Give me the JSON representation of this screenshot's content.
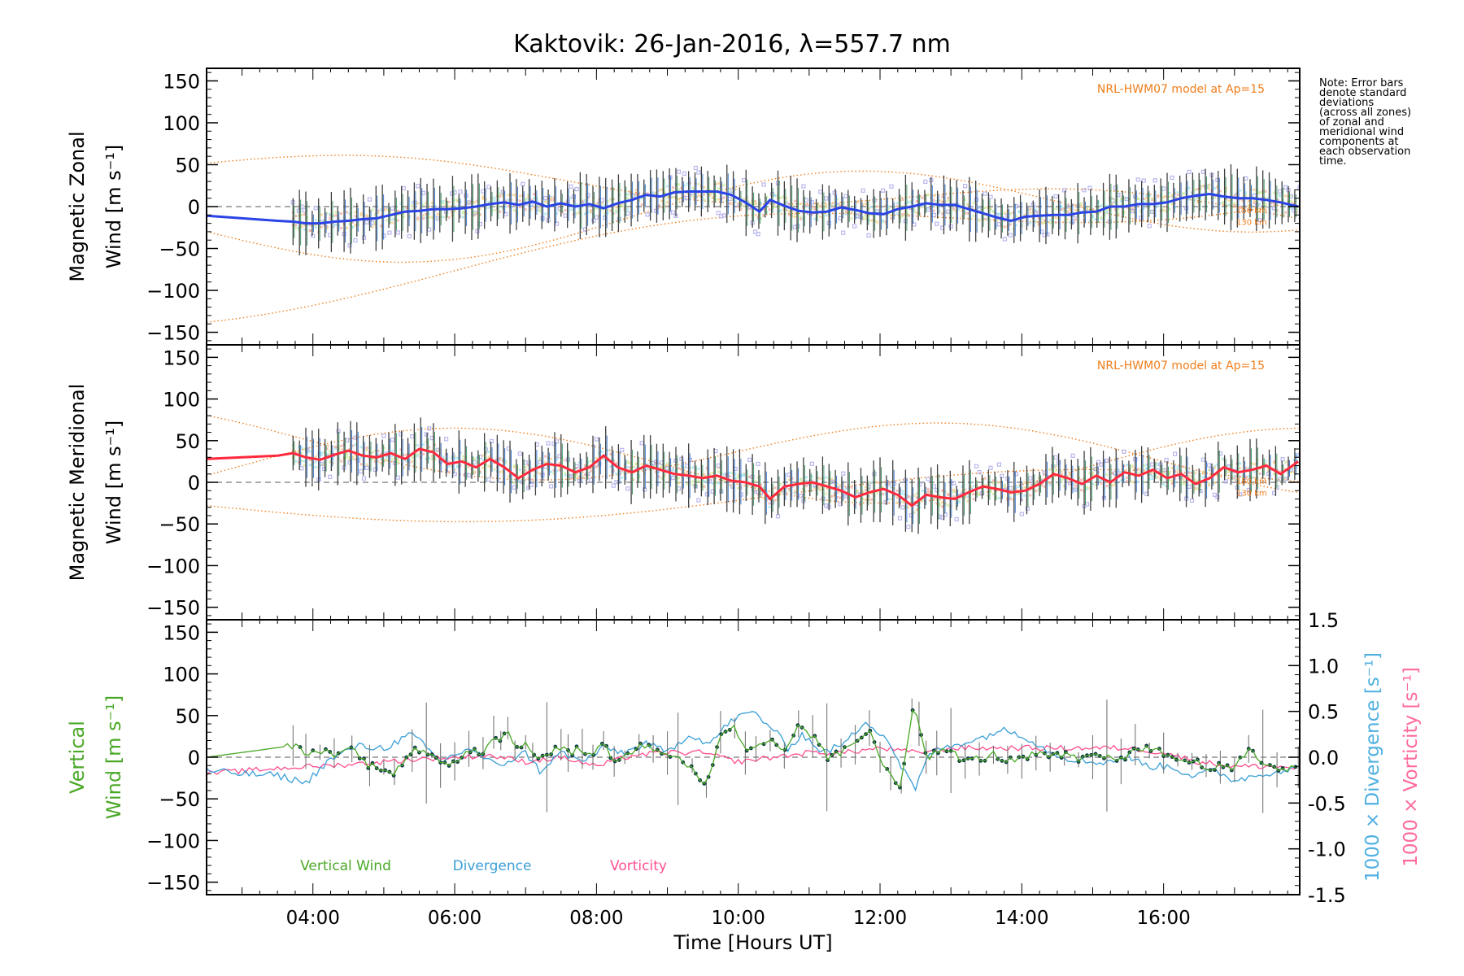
{
  "title": "Kaktovik: 26-Jan-2016, λ=557.7 nm",
  "note": [
    "Note: Error bars",
    "denote standard",
    "deviations",
    "(across all zones)",
    "of zonal and",
    "meridional wind",
    "components at",
    "each observation",
    "time."
  ],
  "colors": {
    "zonal": "#2a44e6",
    "meridional": "#ff2a3d",
    "vertical": "#4aa827",
    "divergence": "#3a9fd6",
    "vorticity": "#ff4f91",
    "model": "#f07d1a",
    "errorbar": "#3f3f3f",
    "scatter": "#b9b7ee",
    "bands": [
      "#a8e6f3",
      "#f7d38f",
      "#f3b0a6",
      "#cfeea0"
    ]
  },
  "chart_data": [
    {
      "type": "line",
      "panel": "zonal",
      "ylabel_line1": "Magnetic Zonal",
      "ylabel_line2": "Wind [m s⁻¹]",
      "ylim": [
        -165,
        165
      ],
      "yticks": [
        150,
        100,
        50,
        0,
        -50,
        -100,
        -150
      ],
      "xlim": [
        2.5,
        17.92
      ],
      "model_label": "NRL-HWM07 model at Ap=15",
      "model_alt_labels": [
        "150 km",
        "130 km"
      ],
      "series": [
        {
          "x": [
            2.5,
            3.0,
            3.5,
            3.72,
            3.9,
            4.1,
            4.3,
            4.5,
            4.7,
            4.9,
            5.1,
            5.3,
            5.5,
            5.7,
            5.9,
            6.1,
            6.3,
            6.5,
            6.7,
            6.9,
            7.1,
            7.3,
            7.5,
            7.7,
            7.9,
            8.1,
            8.3,
            8.5,
            8.7,
            8.9,
            9.1,
            9.3,
            9.5,
            9.7,
            9.9,
            10.1,
            10.3,
            10.45,
            10.65,
            10.85,
            11.05,
            11.25,
            11.45,
            11.65,
            11.85,
            12.05,
            12.25,
            12.45,
            12.65,
            12.85,
            13.05,
            13.25,
            13.45,
            13.65,
            13.85,
            14.05,
            14.25,
            14.45,
            14.65,
            14.85,
            15.05,
            15.25,
            15.45,
            15.65,
            15.85,
            16.05,
            16.25,
            16.45,
            16.65,
            16.85,
            17.05,
            17.25,
            17.45,
            17.65,
            17.9
          ],
          "y": [
            -11,
            -14,
            -17,
            -18,
            -20,
            -20,
            -18,
            -17,
            -15,
            -14,
            -10,
            -6,
            -5,
            -3,
            -3,
            -2,
            0,
            3,
            5,
            2,
            6,
            0,
            4,
            0,
            3,
            -2,
            4,
            8,
            14,
            12,
            17,
            18,
            18,
            18,
            14,
            5,
            -6,
            8,
            1,
            -5,
            -7,
            -6,
            -1,
            -4,
            -8,
            -9,
            -3,
            0,
            4,
            2,
            2,
            -3,
            -8,
            -13,
            -17,
            -12,
            -11,
            -10,
            -10,
            -7,
            -6,
            0,
            0,
            3,
            3,
            5,
            10,
            13,
            15,
            12,
            10,
            10,
            8,
            5,
            0
          ]
        }
      ]
    },
    {
      "type": "line",
      "panel": "meridional",
      "ylabel_line1": "Magnetic Meridional",
      "ylabel_line2": "Wind [m s⁻¹]",
      "ylim": [
        -165,
        165
      ],
      "yticks": [
        150,
        100,
        50,
        0,
        -50,
        -100,
        -150
      ],
      "xlim": [
        2.5,
        17.92
      ],
      "model_label": "NRL-HWM07 model at Ap=15",
      "model_alt_labels": [
        "150 km",
        "130 km"
      ],
      "series": [
        {
          "x": [
            2.5,
            3.0,
            3.5,
            3.72,
            3.9,
            4.1,
            4.3,
            4.5,
            4.7,
            4.9,
            5.1,
            5.3,
            5.5,
            5.7,
            5.9,
            6.1,
            6.3,
            6.5,
            6.7,
            6.9,
            7.1,
            7.3,
            7.5,
            7.7,
            7.9,
            8.1,
            8.3,
            8.5,
            8.7,
            8.9,
            9.1,
            9.3,
            9.5,
            9.7,
            9.9,
            10.1,
            10.3,
            10.45,
            10.65,
            10.85,
            11.05,
            11.25,
            11.45,
            11.65,
            11.85,
            12.05,
            12.25,
            12.45,
            12.65,
            12.85,
            13.05,
            13.25,
            13.45,
            13.65,
            13.85,
            14.05,
            14.25,
            14.45,
            14.65,
            14.85,
            15.05,
            15.25,
            15.45,
            15.65,
            15.85,
            16.05,
            16.25,
            16.45,
            16.65,
            16.85,
            17.05,
            17.25,
            17.45,
            17.65,
            17.9
          ],
          "y": [
            28,
            30,
            32,
            35,
            30,
            27,
            33,
            38,
            32,
            30,
            35,
            28,
            40,
            36,
            22,
            25,
            18,
            28,
            18,
            5,
            15,
            22,
            20,
            12,
            18,
            32,
            18,
            12,
            20,
            15,
            10,
            8,
            5,
            8,
            2,
            0,
            -5,
            -20,
            -5,
            -2,
            0,
            -5,
            -10,
            -18,
            -12,
            -8,
            -15,
            -28,
            -15,
            -18,
            -20,
            -12,
            -5,
            -8,
            -12,
            -10,
            -2,
            10,
            5,
            -2,
            8,
            0,
            12,
            8,
            15,
            5,
            10,
            -2,
            5,
            18,
            12,
            15,
            20,
            10,
            25
          ]
        }
      ]
    },
    {
      "type": "line",
      "panel": "vertical",
      "ylabel_line1": "Vertical",
      "ylabel_line2": "Wind [m s⁻¹]",
      "ylim": [
        -165,
        165
      ],
      "yticks": [
        150,
        100,
        50,
        0,
        -50,
        -100,
        -150
      ],
      "y2ticks": [
        1.5,
        1.0,
        0.5,
        0.0,
        -0.5,
        -1.0,
        -1.5
      ],
      "y2lim": [
        -1.5,
        1.5
      ],
      "y2label_divergence": "1000 × Divergence [s⁻¹]",
      "y2label_vorticity": "1000 × Vorticity [s⁻¹]",
      "xlim": [
        2.5,
        17.92
      ],
      "xticks": [
        "04:00",
        "06:00",
        "08:00",
        "10:00",
        "12:00",
        "14:00",
        "16:00"
      ],
      "xlabel": "Time [Hours UT]",
      "legend": [
        "Vertical Wind",
        "Divergence",
        "Vorticity"
      ],
      "series": [
        {
          "name": "Vertical Wind",
          "x": [
            2.5,
            3.2,
            3.72,
            3.9,
            4.1,
            4.3,
            4.55,
            4.8,
            5.0,
            5.15,
            5.4,
            5.6,
            5.8,
            6.0,
            6.2,
            6.4,
            6.55,
            6.65,
            6.75,
            6.85,
            7.0,
            7.1,
            7.3,
            7.5,
            7.6,
            7.8,
            7.95,
            8.1,
            8.25,
            8.4,
            8.6,
            8.8,
            9.0,
            9.15,
            9.35,
            9.55,
            9.75,
            9.95,
            10.1,
            10.25,
            10.45,
            10.65,
            10.85,
            11.05,
            11.25,
            11.45,
            11.65,
            11.85,
            12.0,
            12.15,
            12.3,
            12.45,
            12.55,
            12.65,
            12.8,
            13.0,
            13.2,
            13.4,
            13.6,
            13.8,
            14.0,
            14.2,
            14.4,
            14.6,
            14.8,
            15.0,
            15.2,
            15.4,
            15.6,
            15.8,
            16.0,
            16.2,
            16.4,
            16.6,
            16.8,
            17.0,
            17.2,
            17.4,
            17.6,
            17.9
          ],
          "y": [
            0,
            8,
            14,
            7,
            6,
            5,
            10,
            -10,
            -12,
            -18,
            8,
            5,
            -10,
            -5,
            10,
            5,
            30,
            20,
            35,
            8,
            18,
            5,
            0,
            15,
            5,
            10,
            0,
            20,
            -5,
            0,
            15,
            10,
            5,
            -2,
            -10,
            -38,
            30,
            35,
            5,
            10,
            20,
            2,
            40,
            25,
            0,
            5,
            15,
            35,
            0,
            -20,
            -35,
            60,
            40,
            0,
            5,
            8,
            -5,
            -2,
            3,
            -3,
            -5,
            5,
            0,
            2,
            -3,
            0,
            2,
            -5,
            15,
            8,
            5,
            -3,
            -5,
            -10,
            -12,
            -15,
            10,
            -5,
            -15,
            -12
          ]
        },
        {
          "name": "Divergence",
          "x": [
            2.5,
            3.0,
            3.5,
            3.9,
            4.2,
            4.6,
            5.0,
            5.4,
            5.8,
            6.2,
            6.6,
            7.0,
            7.2,
            7.5,
            7.8,
            8.1,
            8.4,
            8.7,
            9.0,
            9.3,
            9.6,
            9.9,
            10.2,
            10.5,
            10.7,
            10.9,
            11.2,
            11.5,
            11.8,
            12.1,
            12.3,
            12.5,
            12.7,
            12.9,
            13.1,
            13.4,
            13.7,
            14.0,
            14.3,
            14.6,
            14.9,
            15.2,
            15.5,
            15.8,
            16.1,
            16.4,
            16.7,
            17.0,
            17.3,
            17.6,
            17.9
          ],
          "y": [
            -0.15,
            -0.18,
            -0.2,
            -0.28,
            -0.05,
            0.12,
            0.1,
            0.25,
            -0.05,
            0.1,
            -0.1,
            0.05,
            -0.15,
            0.05,
            -0.05,
            0.1,
            0.05,
            0.15,
            0.05,
            0.25,
            0.15,
            0.4,
            0.5,
            0.3,
            0.1,
            0.25,
            0.05,
            0.15,
            0.4,
            0.2,
            -0.1,
            -0.35,
            0.05,
            0.1,
            0.15,
            0.2,
            0.3,
            0.25,
            0.1,
            0.0,
            -0.05,
            -0.05,
            0.0,
            -0.1,
            -0.1,
            -0.2,
            -0.15,
            -0.25,
            -0.2,
            -0.15,
            -0.12
          ]
        },
        {
          "name": "Vorticity",
          "x": [
            2.5,
            3.0,
            3.5,
            4.0,
            4.5,
            5.0,
            5.5,
            6.0,
            6.5,
            7.0,
            7.5,
            8.0,
            8.5,
            9.0,
            9.5,
            10.0,
            10.5,
            11.0,
            11.5,
            12.0,
            12.5,
            13.0,
            13.5,
            14.0,
            14.5,
            15.0,
            15.5,
            16.0,
            16.5,
            17.0,
            17.5,
            17.9
          ],
          "y": [
            -0.18,
            -0.15,
            -0.12,
            -0.1,
            -0.08,
            -0.05,
            -0.02,
            0.0,
            0.02,
            -0.05,
            0.0,
            -0.1,
            0.02,
            0.05,
            0.05,
            -0.05,
            0.0,
            0.05,
            0.05,
            0.1,
            0.05,
            0.1,
            0.1,
            0.1,
            0.1,
            0.1,
            0.1,
            0.05,
            -0.05,
            -0.1,
            -0.1,
            -0.12
          ]
        }
      ]
    }
  ]
}
